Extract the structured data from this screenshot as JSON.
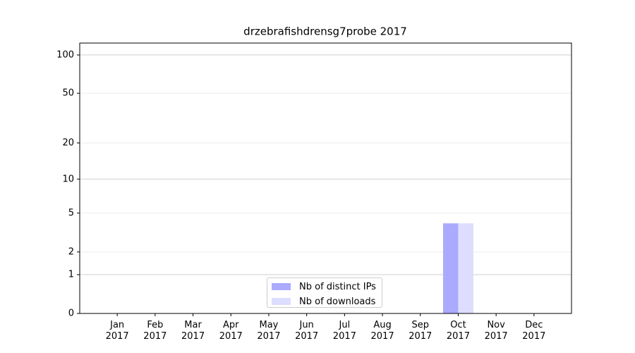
{
  "chart_data": {
    "type": "bar",
    "title": "drzebrafishdrensg7probe 2017",
    "categories": [
      "Jan\n2017",
      "Feb\n2017",
      "Mar\n2017",
      "Apr\n2017",
      "May\n2017",
      "Jun\n2017",
      "Jul\n2017",
      "Aug\n2017",
      "Sep\n2017",
      "Oct\n2017",
      "Nov\n2017",
      "Dec\n2017"
    ],
    "series": [
      {
        "name": "Nb of distinct IPs",
        "color": "#aaaaff",
        "values": [
          0,
          0,
          0,
          0,
          0,
          0,
          0,
          0,
          0,
          4,
          0,
          0
        ]
      },
      {
        "name": "Nb of downloads",
        "color": "#ddddff",
        "values": [
          0,
          0,
          0,
          0,
          0,
          0,
          0,
          0,
          0,
          4,
          0,
          0
        ]
      }
    ],
    "yscale": "log1p",
    "ylim": [
      0,
      124
    ],
    "yticks": [
      0,
      1,
      2,
      5,
      10,
      20,
      50,
      100
    ],
    "grid": true,
    "legend": "lower center"
  }
}
